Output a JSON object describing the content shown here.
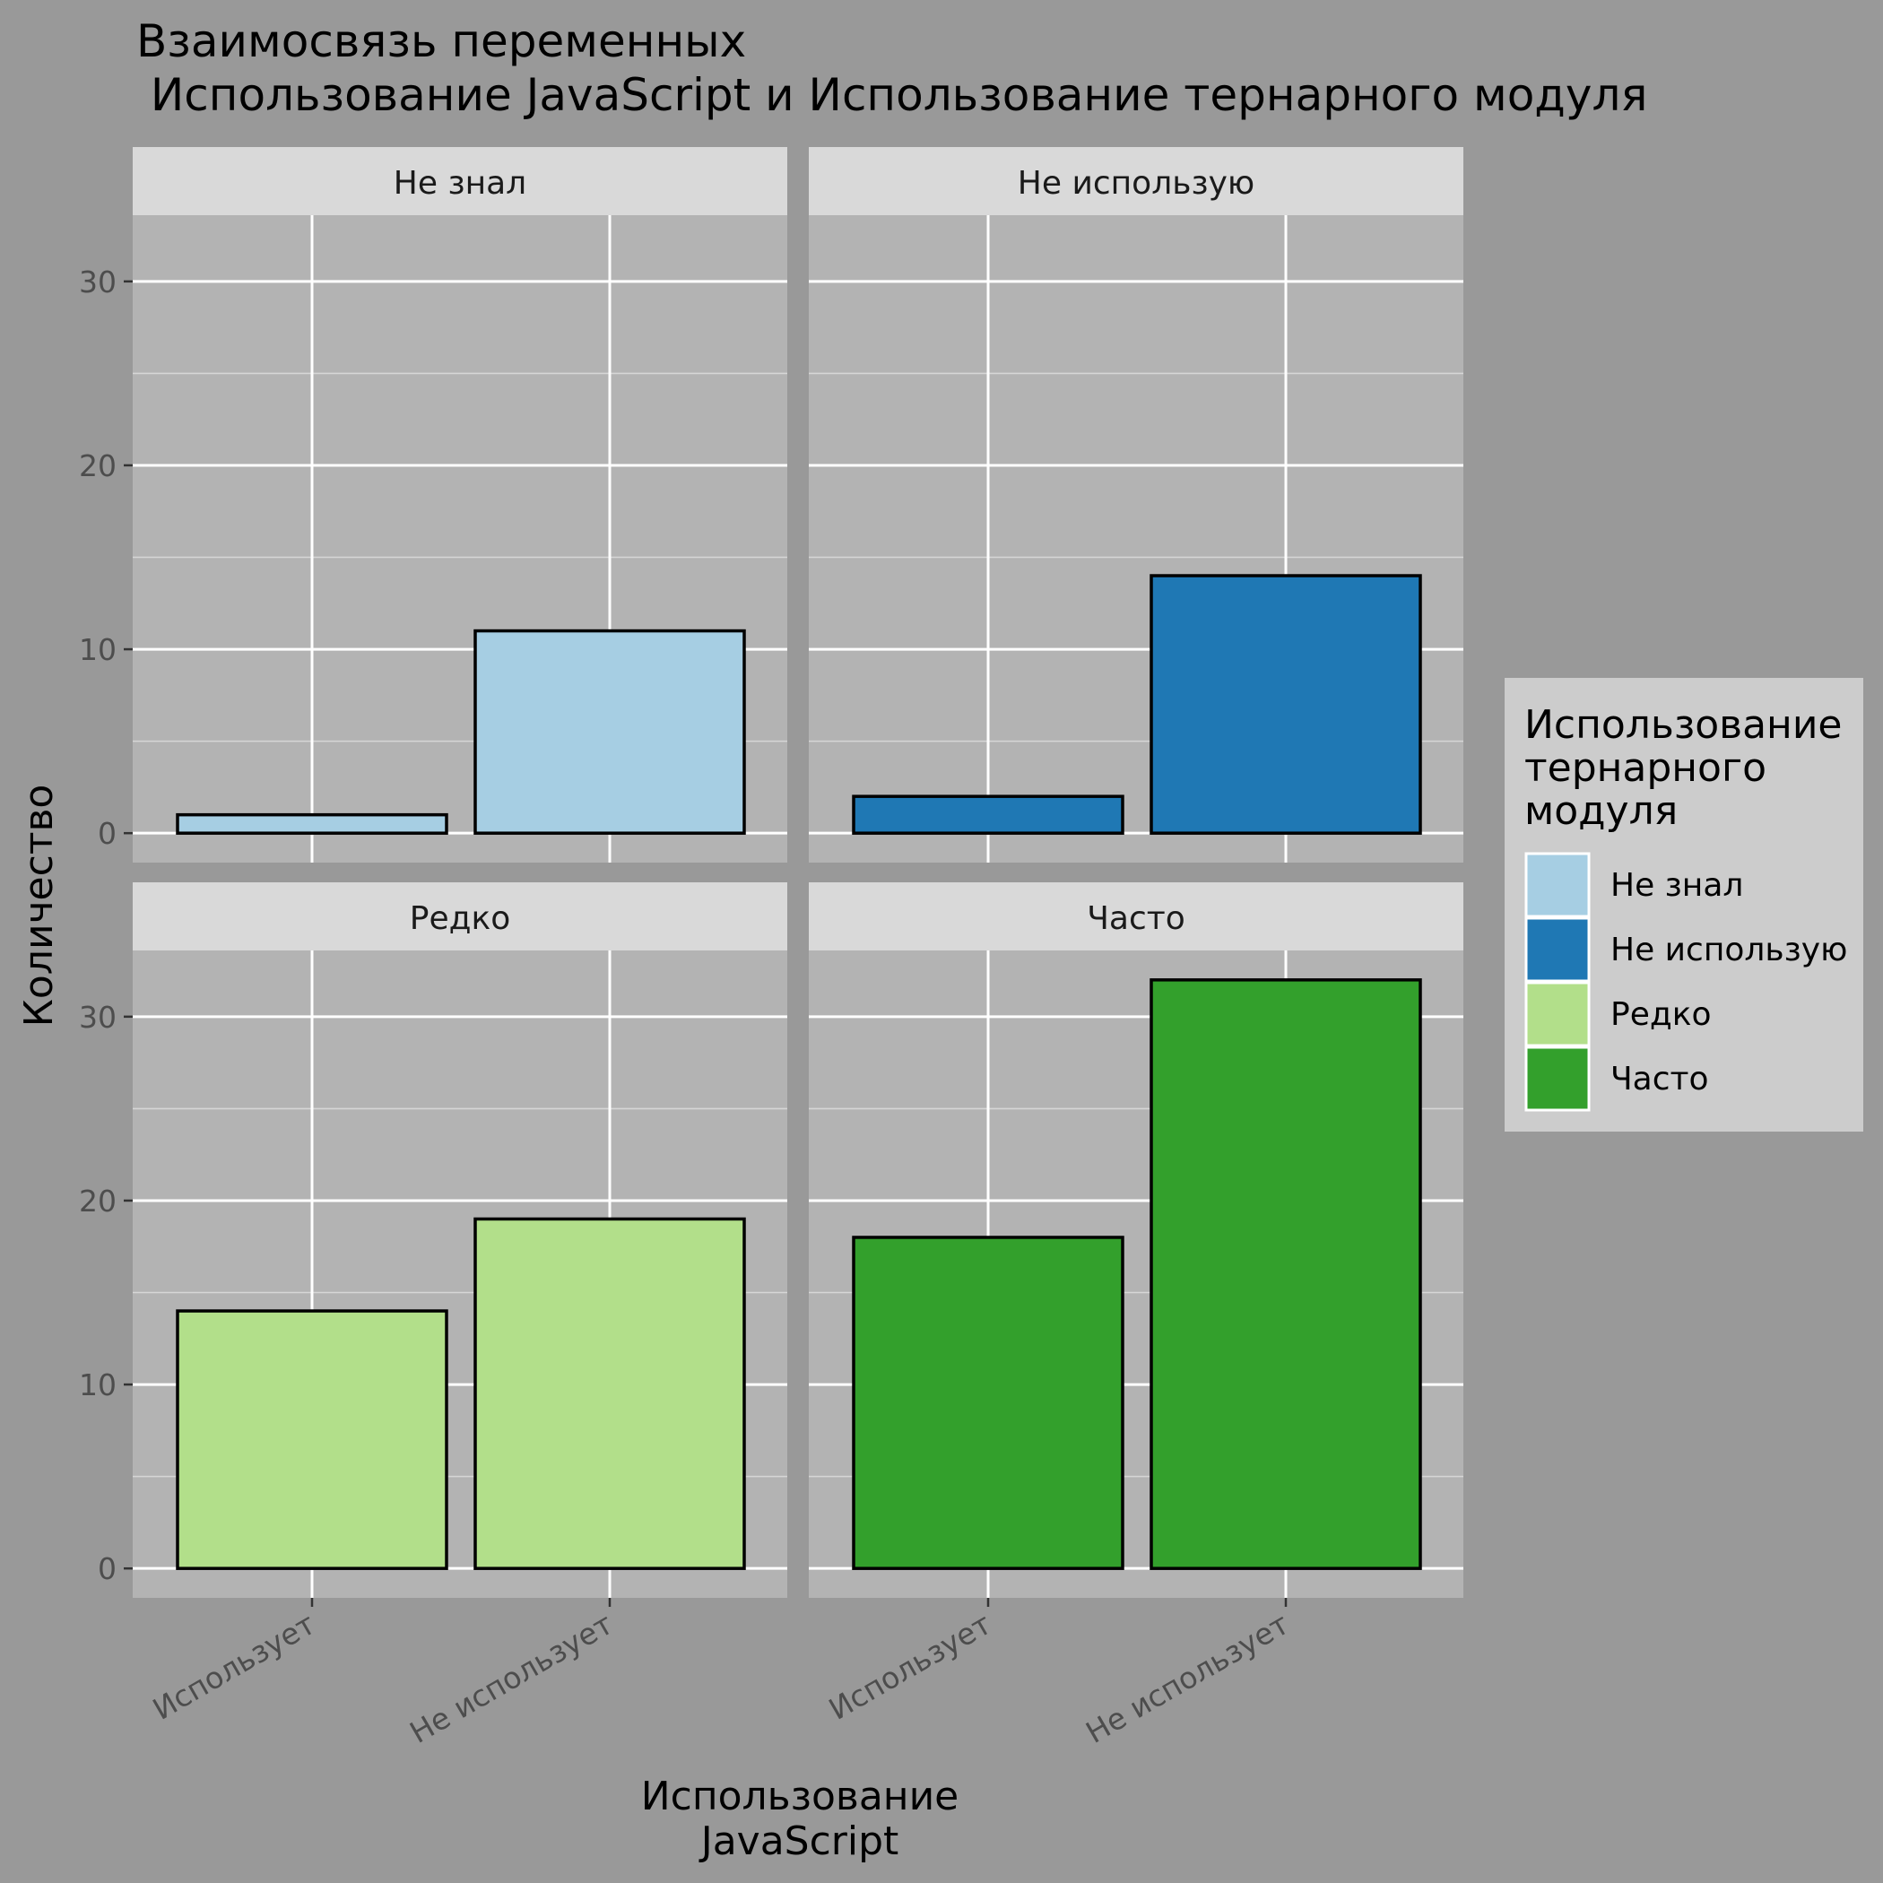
{
  "chart_data": {
    "type": "bar",
    "title": "Взаимосвязь переменных\n Использование JavaScript и Использование тернарного модуля",
    "xlabel": "Использование\nJavaScript",
    "ylabel": "Количество",
    "ylim": [
      0,
      35
    ],
    "yticks": [
      0,
      10,
      20,
      30
    ],
    "categories": [
      "Использует",
      "Не использует"
    ],
    "facets": [
      {
        "label": "Не знал",
        "values": [
          1,
          11
        ],
        "color": "#A6CEE3"
      },
      {
        "label": "Не использую",
        "values": [
          2,
          14
        ],
        "color": "#1F78B4"
      },
      {
        "label": "Редко",
        "values": [
          14,
          19
        ],
        "color": "#B2DF8A"
      },
      {
        "label": "Часто",
        "values": [
          18,
          32
        ],
        "color": "#33A02C"
      }
    ],
    "grid": true,
    "legend": {
      "title": "Использование\nтернарного\nмодуля",
      "position": "right",
      "entries": [
        "Не знал",
        "Не использую",
        "Редко",
        "Часто"
      ]
    }
  }
}
